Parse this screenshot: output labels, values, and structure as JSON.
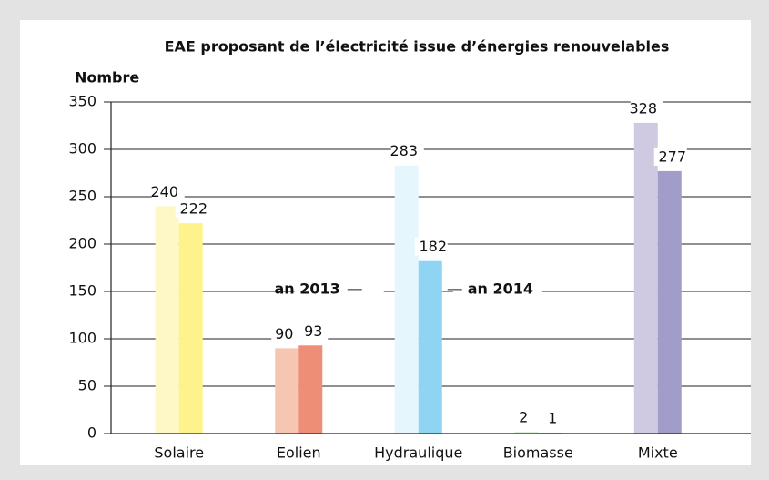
{
  "chart_data": {
    "type": "bar",
    "title": "EAE proposant de l’électricité issue d’énergies renouvelables",
    "y_label": "Nombre",
    "categories": [
      "Solaire",
      "Eolien",
      "Hydraulique",
      "Biomasse",
      "Mixte"
    ],
    "series": [
      {
        "name": "an 2013",
        "colors": [
          "#fdf8c6",
          "#f7c6b3",
          "#e6f6fd",
          "#dcf0d4",
          "#cfcae2"
        ],
        "values": [
          240,
          90,
          283,
          2,
          328
        ]
      },
      {
        "name": "an 2014",
        "colors": [
          "#fdf28c",
          "#ee8e76",
          "#90d4f3",
          "#b3dda5",
          "#a09dc9"
        ],
        "values": [
          222,
          93,
          182,
          1,
          277
        ]
      }
    ],
    "ylim": [
      0,
      350
    ],
    "yticks": [
      0,
      50,
      100,
      150,
      200,
      250,
      300,
      350
    ],
    "grid": true
  }
}
